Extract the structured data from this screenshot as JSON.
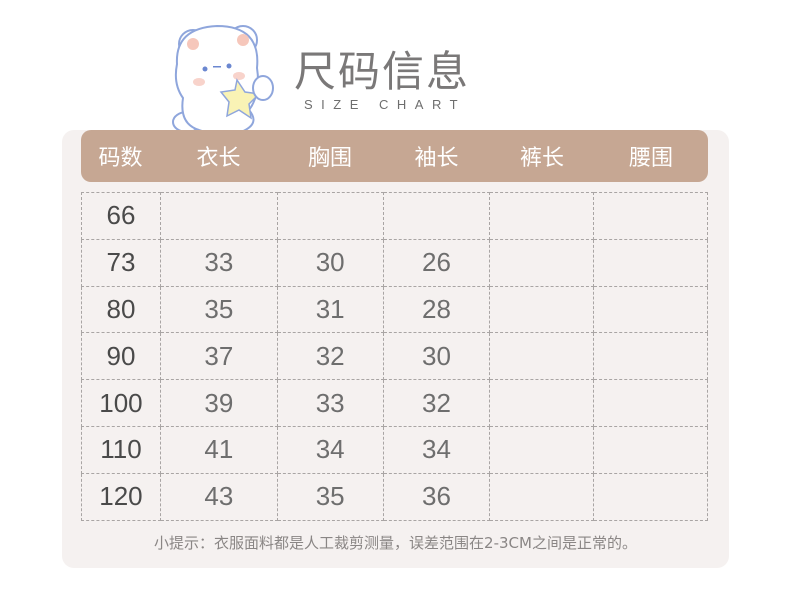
{
  "title": "尺码信息",
  "subtitle": "SIZE CHART",
  "colors": {
    "header": "#c6a793",
    "panel": "#f5f1f0",
    "text": "#6e6e6e"
  },
  "mascot": "bear-holding-star",
  "table": {
    "headers": [
      "码数",
      "衣长",
      "胸围",
      "袖长",
      "裤长",
      "腰围"
    ],
    "rows": [
      [
        "66",
        "",
        "",
        "",
        "",
        ""
      ],
      [
        "73",
        "33",
        "30",
        "26",
        "",
        ""
      ],
      [
        "80",
        "35",
        "31",
        "28",
        "",
        ""
      ],
      [
        "90",
        "37",
        "32",
        "30",
        "",
        ""
      ],
      [
        "100",
        "39",
        "33",
        "32",
        "",
        ""
      ],
      [
        "110",
        "41",
        "34",
        "34",
        "",
        ""
      ],
      [
        "120",
        "43",
        "35",
        "36",
        "",
        ""
      ]
    ]
  },
  "note": "小提示：衣服面料都是人工裁剪测量，误差范围在2-3CM之间是正常的。"
}
